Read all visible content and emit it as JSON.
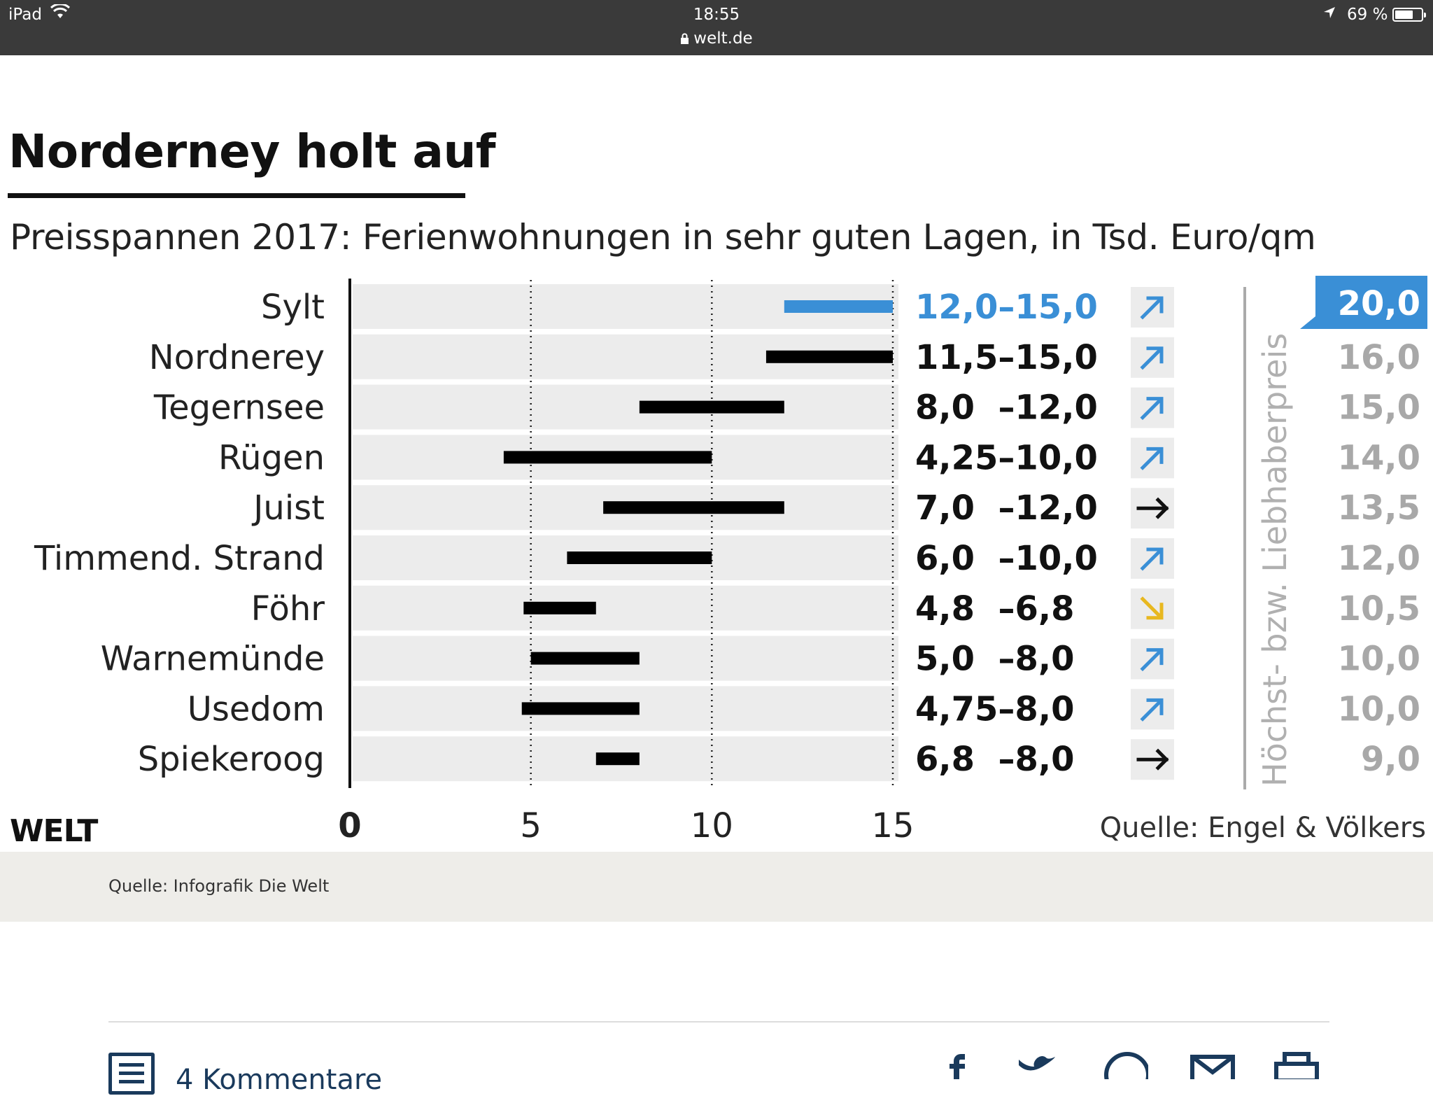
{
  "status_bar": {
    "device": "iPad",
    "time": "18:55",
    "url": "welt.de",
    "battery_percent": "69 %",
    "battery_level": 0.69
  },
  "infographic": {
    "logo": "WELT",
    "source": "Quelle: Engel & Völkers"
  },
  "chart_data": {
    "type": "bar",
    "title": "Norderney holt auf",
    "subtitle": "Preisspannen 2017: Ferienwohnungen in sehr guten Lagen, in Tsd. Euro/qm",
    "x_ticks": [
      "0",
      "5",
      "10",
      "15"
    ],
    "xlim": [
      0,
      15
    ],
    "grid": "dotted vertical at 5, 10, 15",
    "max_column_label": "Höchst- bzw. Liebhaberpreis",
    "highlight_color": "#3a8fd6",
    "rows": [
      {
        "name": "Sylt",
        "min": 12.0,
        "max": 15.0,
        "range_label": "12,0–15,0",
        "trend": "up",
        "top_price": "20,0",
        "highlight": true
      },
      {
        "name": "Nordnerey",
        "min": 11.5,
        "max": 15.0,
        "range_label": "11,5–15,0",
        "trend": "up",
        "top_price": "16,0"
      },
      {
        "name": "Tegernsee",
        "min": 8.0,
        "max": 12.0,
        "range_label": "8,0  –12,0",
        "trend": "up",
        "top_price": "15,0"
      },
      {
        "name": "Rügen",
        "min": 4.25,
        "max": 10.0,
        "range_label": "4,25–10,0",
        "trend": "up",
        "top_price": "14,0"
      },
      {
        "name": "Juist",
        "min": 7.0,
        "max": 12.0,
        "range_label": "7,0  –12,0",
        "trend": "flat",
        "top_price": "13,5"
      },
      {
        "name": "Timmend. Strand",
        "min": 6.0,
        "max": 10.0,
        "range_label": "6,0  –10,0",
        "trend": "up",
        "top_price": "12,0"
      },
      {
        "name": "Föhr",
        "min": 4.8,
        "max": 6.8,
        "range_label": "4,8  –6,8",
        "trend": "down",
        "top_price": "10,5"
      },
      {
        "name": "Warnemünde",
        "min": 5.0,
        "max": 8.0,
        "range_label": "5,0  –8,0",
        "trend": "up",
        "top_price": "10,0"
      },
      {
        "name": "Usedom",
        "min": 4.75,
        "max": 8.0,
        "range_label": "4,75–8,0",
        "trend": "up",
        "top_price": "10,0"
      },
      {
        "name": "Spiekeroog",
        "min": 6.8,
        "max": 8.0,
        "range_label": "6,8  –8,0",
        "trend": "flat",
        "top_price": "9,0"
      }
    ],
    "trend_colors": {
      "up": "#3a8fd6",
      "down": "#e8b820",
      "flat": "#111111"
    }
  },
  "caption": "Quelle: Infografik Die Welt",
  "footer": {
    "comments_label": "4 Kommentare",
    "share_icons": [
      "facebook-icon",
      "twitter-icon",
      "whatsapp-icon",
      "mail-icon",
      "print-icon"
    ]
  }
}
